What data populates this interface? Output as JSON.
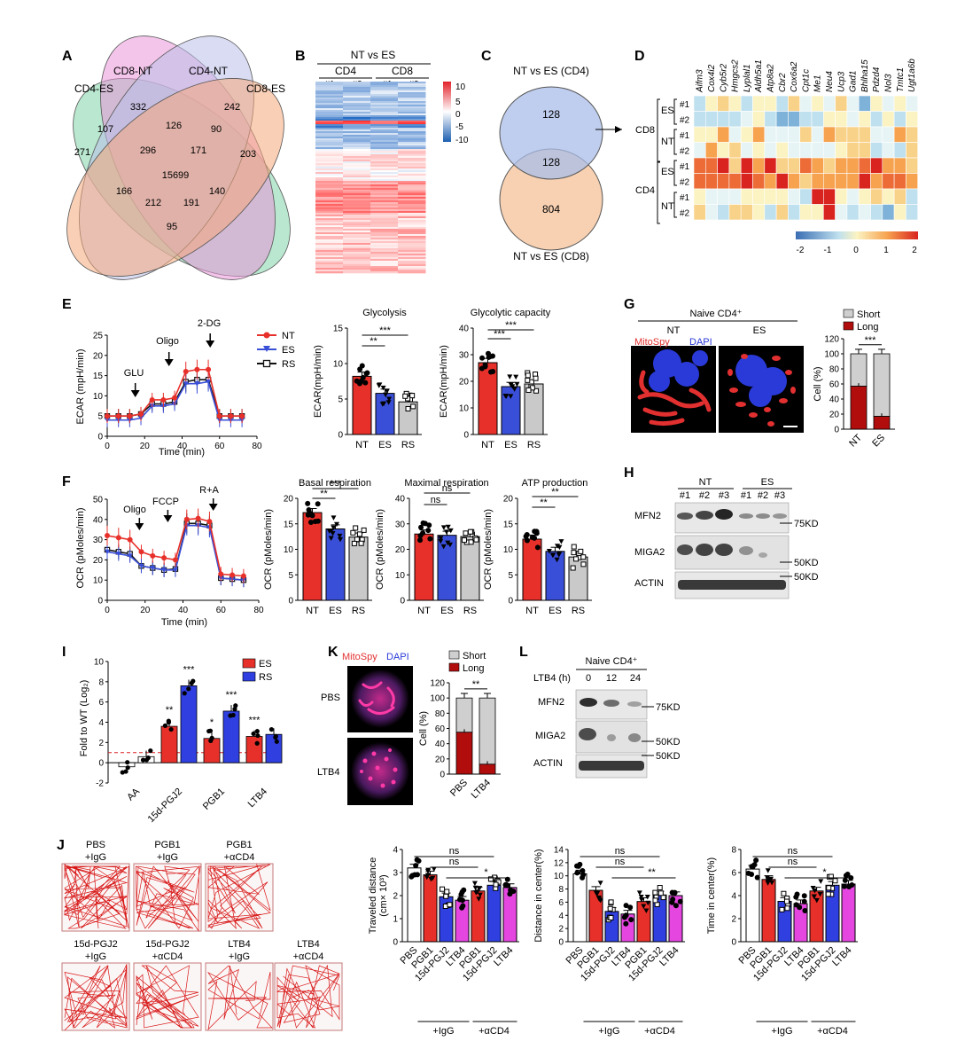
{
  "colors": {
    "nt": "#e8302a",
    "es": "#3a4fd8",
    "rs": "#c9c9c9",
    "pbs": "#ffffff",
    "long": "#b20d0d",
    "short": "#cfcfcf",
    "mito": "#e23030",
    "dapi": "#2a3ad8",
    "ctrl": "#555555",
    "magenta": "#e546e0",
    "violet": "#2f3fe0"
  },
  "labels": {
    "A": "A",
    "B": "B",
    "C": "C",
    "D": "D",
    "E": "E",
    "F": "F",
    "G": "G",
    "H": "H",
    "I": "I",
    "J": "J",
    "K": "K",
    "L": "L"
  },
  "panelA": {
    "sets": [
      "CD8-NT",
      "CD4-NT",
      "CD4-ES",
      "CD8-ES"
    ],
    "counts": [
      "332",
      "242",
      "271",
      "203",
      "107",
      "126",
      "90",
      "296",
      "171",
      "15699",
      "166",
      "140",
      "212",
      "191",
      "95"
    ]
  },
  "panelB": {
    "title": "NT vs ES",
    "groups": [
      "CD4",
      "CD8"
    ],
    "samples": [
      "#1",
      "#2",
      "#1",
      "#2"
    ],
    "scale": [
      "10",
      "5",
      "0",
      "-5",
      "-10"
    ]
  },
  "panelC": {
    "top": "NT vs ES (CD4)",
    "bottom": "NT vs ES (CD8)",
    "counts": [
      "128",
      "128",
      "804"
    ]
  },
  "panelD": {
    "genes": [
      "Aifm3",
      "Cox4i2",
      "Cyb5r2",
      "Hmgcs2",
      "Lyplal1",
      "Aldh5a1",
      "Atp8a2",
      "Cbr2",
      "Cox6a2",
      "Cpt1c",
      "Me1",
      "Neu4",
      "Ucp3",
      "Gad1",
      "Bhlha15",
      "Pdzd4",
      "Nol3",
      "Tmtc1",
      "Ugt1a6b"
    ],
    "groups": [
      "CD8",
      "CD4"
    ],
    "subgroups": [
      "ES",
      "NT",
      "ES",
      "NT"
    ],
    "reps": [
      "#1",
      "#2",
      "#1",
      "#2",
      "#1",
      "#2",
      "#1",
      "#2"
    ],
    "scale": [
      "-2",
      "-1",
      "0",
      "1",
      "2"
    ]
  },
  "panelE": {
    "ylabel": "ECAR (mpH/min)",
    "xlabel": "Time (min)",
    "injections": [
      "GLU",
      "Oligo",
      "2-DG"
    ],
    "legend": [
      "NT",
      "ES",
      "RS"
    ],
    "xticks": [
      "0",
      "20",
      "40",
      "60",
      "80"
    ],
    "yticks": [
      "0",
      "5",
      "10",
      "15",
      "20",
      "25"
    ],
    "chart_data": {
      "type": "line",
      "x": [
        0,
        6,
        12,
        18,
        24,
        30,
        36,
        42,
        48,
        54,
        60,
        66,
        72
      ],
      "series": [
        {
          "name": "NT",
          "values": [
            5,
            5,
            5,
            5.5,
            9,
            9,
            9.5,
            16,
            16.5,
            16.5,
            5,
            5,
            5
          ]
        },
        {
          "name": "ES",
          "values": [
            4,
            4,
            4,
            4.5,
            7.5,
            7.5,
            8,
            13,
            13,
            13.5,
            4,
            4,
            4
          ]
        },
        {
          "name": "RS",
          "values": [
            5,
            5,
            5,
            5.5,
            8,
            8,
            8.5,
            13.5,
            14,
            14,
            5,
            5,
            5
          ]
        }
      ],
      "ylim": [
        0,
        25
      ],
      "xlim": [
        0,
        80
      ]
    },
    "bars": [
      {
        "title": "Glycolysis",
        "ylabel": "ECAR(mpH/min)",
        "yticks": [
          "0",
          "5",
          "10",
          "15"
        ],
        "ylim": [
          0,
          15
        ],
        "values": [
          8.2,
          5.8,
          4.6
        ],
        "sig": [
          "**",
          "***"
        ]
      },
      {
        "title": "Glycolytic capacity",
        "ylabel": "ECAR(mpH/min)",
        "yticks": [
          "0",
          "10",
          "20",
          "30",
          "40"
        ],
        "ylim": [
          0,
          40
        ],
        "values": [
          27,
          18,
          19
        ],
        "sig": [
          "***",
          "***"
        ]
      }
    ],
    "cats": [
      "NT",
      "ES",
      "RS"
    ]
  },
  "panelF": {
    "ylabel": "OCR (pMoles/min)",
    "xlabel": "Time (min)",
    "injections": [
      "Oligo",
      "FCCP",
      "R+A"
    ],
    "xticks": [
      "0",
      "20",
      "40",
      "60",
      "80"
    ],
    "yticks": [
      "0",
      "10",
      "20",
      "30",
      "40",
      "50"
    ],
    "chart_data": {
      "type": "line",
      "x": [
        0,
        6,
        12,
        18,
        24,
        30,
        36,
        42,
        48,
        54,
        60,
        66,
        72
      ],
      "series": [
        {
          "name": "NT",
          "values": [
            32,
            31,
            30,
            24,
            22,
            21,
            20,
            40,
            40.5,
            39,
            13,
            12.5,
            12
          ]
        },
        {
          "name": "ES",
          "values": [
            24,
            23,
            22,
            17,
            16,
            15,
            15,
            37,
            37,
            36,
            11,
            10.5,
            10
          ]
        },
        {
          "name": "RS",
          "values": [
            25,
            24,
            23,
            17,
            16,
            15,
            15.5,
            38,
            38,
            37,
            11,
            10.5,
            10
          ]
        }
      ],
      "ylim": [
        0,
        50
      ],
      "xlim": [
        0,
        80
      ]
    },
    "bars": [
      {
        "title": "Basal   respiration",
        "ylabel": "OCR (pMoles/min)",
        "yticks": [
          "0",
          "5",
          "10",
          "15",
          "20"
        ],
        "ylim": [
          0,
          20
        ],
        "values": [
          17.2,
          14,
          12.4
        ],
        "sig": [
          "**",
          "***"
        ]
      },
      {
        "title": "Maximal respiration",
        "ylabel": "OCR (pMoles/min)",
        "yticks": [
          "0",
          "10",
          "20",
          "30",
          "40"
        ],
        "ylim": [
          0,
          40
        ],
        "values": [
          26,
          25.5,
          25
        ],
        "sig": [
          "ns",
          "ns"
        ]
      },
      {
        "title": "ATP production",
        "ylabel": "OCR (pMoles/min)",
        "yticks": [
          "0",
          "5",
          "10",
          "15",
          "20"
        ],
        "ylim": [
          0,
          20
        ],
        "values": [
          12,
          9.6,
          8.5
        ],
        "sig": [
          "**",
          "**"
        ]
      }
    ],
    "cats": [
      "NT",
      "ES",
      "RS"
    ]
  },
  "panelG": {
    "title": "Naive CD4⁺",
    "nt": "NT",
    "es": "ES",
    "mito": "MitoSpy",
    "dapi": "DAPI",
    "legend": [
      "Short",
      "Long"
    ],
    "ylabel": "Cell (%)",
    "yticks": [
      "0",
      "20",
      "40",
      "60",
      "80",
      "100",
      "120"
    ],
    "cats": [
      "NT",
      "ES"
    ],
    "long": [
      57,
      17
    ],
    "sig": "***"
  },
  "panelH": {
    "groups": [
      "NT",
      "ES"
    ],
    "lanes": [
      "#1",
      "#2",
      "#3",
      "#1",
      "#2",
      "#3"
    ],
    "rows": [
      "MFN2",
      "MIGA2",
      "ACTIN"
    ],
    "markers": [
      "75KD",
      "50KD",
      "50KD"
    ]
  },
  "panelI": {
    "ylabel": "Fold to WT (Log₂)",
    "legend": [
      "ES",
      "RS"
    ],
    "cats": [
      "AA",
      "15d-PGJ2",
      "PGB1",
      "LTB4"
    ],
    "yticks": [
      "-2",
      "0",
      "2",
      "4",
      "6",
      "8",
      "10"
    ],
    "chart_data": {
      "type": "bar",
      "categories": [
        "AA",
        "15d-PGJ2",
        "PGB1",
        "LTB4"
      ],
      "series": [
        {
          "name": "ES",
          "values": [
            -0.4,
            3.6,
            2.4,
            2.6
          ]
        },
        {
          "name": "RS",
          "values": [
            0.6,
            7.6,
            5.1,
            2.8
          ]
        }
      ],
      "ylim": [
        -2,
        10
      ],
      "threshold": 1
    },
    "sig": [
      "**",
      "***",
      "*",
      "***",
      "***"
    ]
  },
  "panelK": {
    "mito": "MitoSpy",
    "dapi": "DAPI",
    "rows": [
      "PBS",
      "LTB4"
    ],
    "legend": [
      "Short",
      "Long"
    ],
    "ylabel": "Cell (%)",
    "yticks": [
      "0",
      "20",
      "40",
      "60",
      "80",
      "100",
      "120"
    ],
    "cats": [
      "PBS",
      "LTB4"
    ],
    "long": [
      55,
      13
    ],
    "sig": "**"
  },
  "panelL": {
    "title": "Naive CD4⁺",
    "hours_label": "LTB4 (h)",
    "hours": [
      "0",
      "12",
      "24"
    ],
    "rows": [
      "MFN2",
      "MIGA2",
      "ACTIN"
    ],
    "markers": [
      "75KD",
      "50KD",
      "50KD"
    ]
  },
  "panelJ": {
    "tracks": [
      [
        "PBS",
        "+IgG"
      ],
      [
        "PGB1",
        "+IgG"
      ],
      [
        "PGB1",
        "+αCD4"
      ],
      [
        "15d-PGJ2",
        "+IgG"
      ],
      [
        "15d-PGJ2",
        "+αCD4"
      ],
      [
        "LTB4",
        "+IgG"
      ],
      [
        "LTB4",
        "+αCD4"
      ]
    ],
    "cats": [
      "PBS",
      "PGB1",
      "15d-PGJ2",
      "LTB4",
      "PGB1",
      "15d-PGJ2",
      "LTB4"
    ],
    "groups": [
      "+IgG",
      "αCD4"
    ],
    "charts": [
      {
        "ylabel1": "Traveled distance",
        "ylabel2": "(cm× 10³)",
        "yticks": [
          "0",
          "1",
          "2",
          "3",
          "4"
        ],
        "ylim": [
          0,
          4
        ],
        "values": [
          3.2,
          2.9,
          1.95,
          1.8,
          2.2,
          2.45,
          2.35
        ],
        "sig": [
          "ns",
          "ns",
          "*"
        ]
      },
      {
        "ylabel1": "Distance in center(%)",
        "ylabel2": "",
        "yticks": [
          "0",
          "2",
          "4",
          "6",
          "8",
          "10",
          "12",
          "14"
        ],
        "ylim": [
          0,
          14
        ],
        "values": [
          10.3,
          7.8,
          4.6,
          4.2,
          6.1,
          7.1,
          7.0
        ],
        "sig": [
          "ns",
          "ns",
          "**"
        ]
      },
      {
        "ylabel1": "Time in center(%)",
        "ylabel2": "",
        "yticks": [
          "0",
          "2",
          "4",
          "6",
          "8"
        ],
        "ylim": [
          0,
          8
        ],
        "values": [
          6.3,
          5.4,
          3.5,
          3.3,
          4.4,
          4.9,
          5.0
        ],
        "sig": [
          "ns",
          "ns",
          "*"
        ]
      }
    ]
  }
}
